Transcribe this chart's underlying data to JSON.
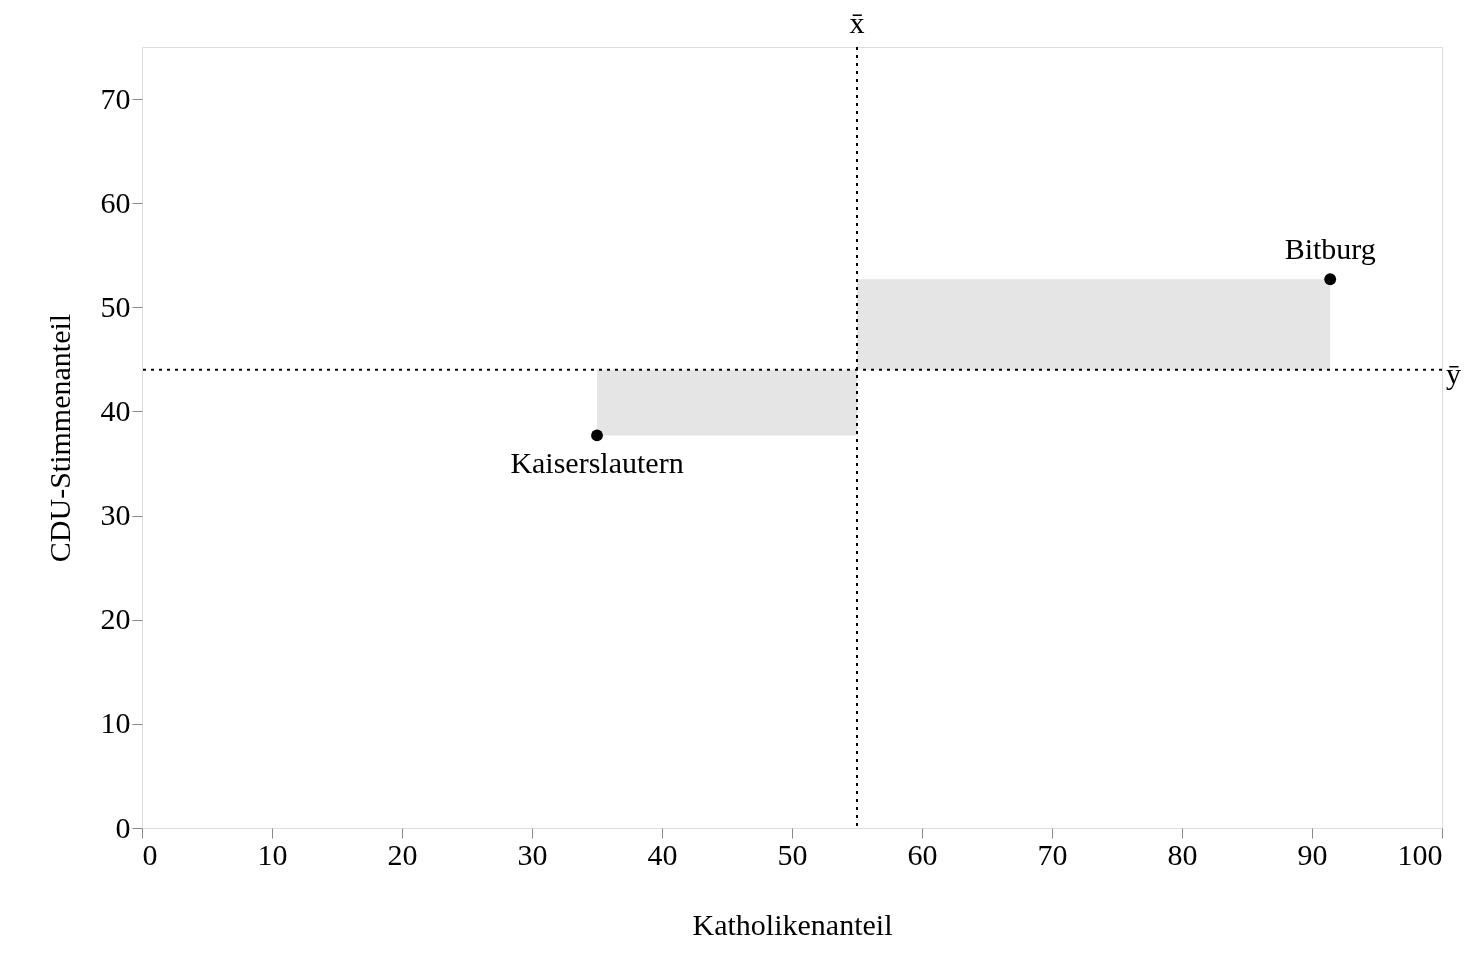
{
  "chart_data": {
    "type": "scatter",
    "xlabel": "Katholikenanteil",
    "ylabel": "CDU-Stimmenanteil",
    "x": [
      35,
      91.4
    ],
    "series": [
      {
        "color": "#000000",
        "values": [
          37.7,
          52.7
        ]
      }
    ],
    "annotations": [
      {
        "text": "Kaiserslautern",
        "x": 35,
        "y": 37.7
      },
      {
        "text": "Bitburg",
        "x": 91.4,
        "y": 52.7
      }
    ],
    "ref_lines": [
      {
        "axis": "x",
        "value": 55,
        "label": "x̄",
        "line_style": "dotted",
        "color": "#000000"
      },
      {
        "axis": "y",
        "value": 44,
        "label": "ȳ",
        "line_style": "dotted",
        "color": "#000000"
      }
    ],
    "xlim": [
      0,
      100
    ],
    "xticks": [
      0,
      10,
      20,
      30,
      40,
      50,
      60,
      70,
      80,
      90,
      100
    ],
    "ylim": [
      0,
      75
    ],
    "yticks": [
      0,
      10,
      20,
      30,
      40,
      50,
      60,
      70
    ],
    "grid": false,
    "legend": false,
    "marker": "circle"
  }
}
